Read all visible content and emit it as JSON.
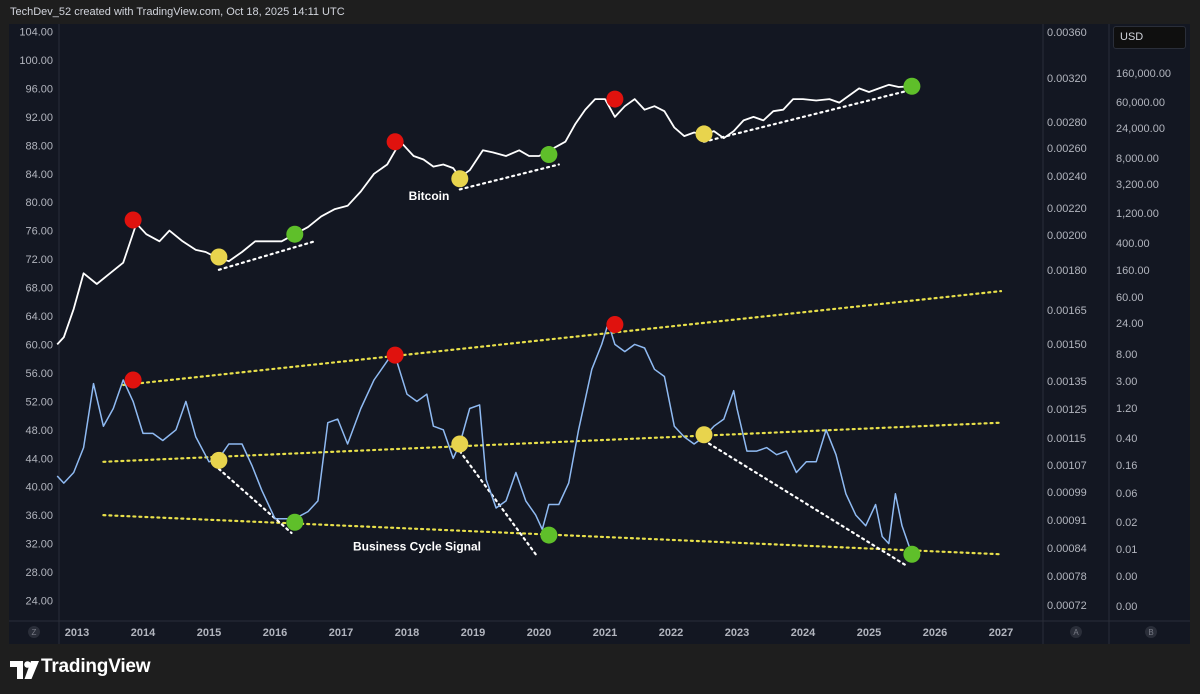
{
  "header": {
    "caption": "TechDev_52 created with TradingView.com, Oct 18, 2025 14:11 UTC"
  },
  "footer": {
    "brand": "TradingView"
  },
  "currency_button": "USD",
  "axis_corner_labels": {
    "left": "Z",
    "mid": "A",
    "right": "B"
  },
  "colors": {
    "background": "#131722",
    "red": "#e0120e",
    "yellow": "#e8d44d",
    "green": "#5fbf2a",
    "signal_line": "#8fbaf2",
    "price_line": "#ffffff",
    "trend": "#e8e04a"
  },
  "chart_data": {
    "type": "line",
    "x_ticks": [
      "2013",
      "2014",
      "2015",
      "2016",
      "2017",
      "2018",
      "2019",
      "2020",
      "2021",
      "2022",
      "2023",
      "2024",
      "2025",
      "2026",
      "2027"
    ],
    "left_axis": {
      "ylim": [
        22,
        106
      ],
      "ticks": [
        "104.00",
        "100.00",
        "96.00",
        "92.00",
        "88.00",
        "84.00",
        "80.00",
        "76.00",
        "72.00",
        "68.00",
        "64.00",
        "60.00",
        "56.00",
        "52.00",
        "48.00",
        "44.00",
        "40.00",
        "36.00",
        "32.00",
        "28.00",
        "24.00"
      ]
    },
    "mid_axis": {
      "ticks": [
        "0.00360",
        "0.00320",
        "0.00280",
        "0.00260",
        "0.00240",
        "0.00220",
        "0.00200",
        "0.00180",
        "0.00165",
        "0.00150",
        "0.00135",
        "0.00125",
        "0.00115",
        "0.00107",
        "0.00099",
        "0.00091",
        "0.00084",
        "0.00078",
        "0.00072"
      ]
    },
    "right_axis": {
      "scale": "log",
      "ticks": [
        "160,000.00",
        "60,000.00",
        "24,000.00",
        "8,000.00",
        "3,200.00",
        "1,200.00",
        "400.00",
        "160.00",
        "60.00",
        "24.00",
        "8.00",
        "3.00",
        "1.20",
        "0.40",
        "0.16",
        "0.06",
        "0.02",
        "0.01",
        "0.00",
        "0.00"
      ]
    },
    "annotations": [
      "Bitcoin",
      "Business Cycle Signal"
    ],
    "series": [
      {
        "name": "Bitcoin",
        "x": [
          2012.7,
          2012.8,
          2012.95,
          2013.1,
          2013.3,
          2013.5,
          2013.7,
          2013.9,
          2014.05,
          2014.25,
          2014.4,
          2014.6,
          2014.8,
          2014.95,
          2015.1,
          2015.3,
          2015.5,
          2015.7,
          2015.9,
          2016.1,
          2016.3,
          2016.5,
          2016.7,
          2016.9,
          2017.1,
          2017.3,
          2017.5,
          2017.7,
          2017.9,
          2018.1,
          2018.25,
          2018.4,
          2018.55,
          2018.7,
          2018.8,
          2018.95,
          2019.15,
          2019.3,
          2019.5,
          2019.7,
          2019.85,
          2020.0,
          2020.2,
          2020.4,
          2020.55,
          2020.7,
          2020.85,
          2021.0,
          2021.15,
          2021.3,
          2021.45,
          2021.6,
          2021.75,
          2021.9,
          2022.05,
          2022.2,
          2022.35,
          2022.5,
          2022.65,
          2022.8,
          2022.95,
          2023.1,
          2023.25,
          2023.4,
          2023.55,
          2023.7,
          2023.85,
          2024.0,
          2024.2,
          2024.4,
          2024.55,
          2024.7,
          2024.85,
          2025.0,
          2025.15,
          2025.3,
          2025.45,
          2025.65
        ],
        "values": [
          60,
          61,
          65,
          70,
          68.5,
          70,
          71.5,
          77,
          75.5,
          74.5,
          76,
          74.5,
          73.3,
          73,
          72.3,
          71.7,
          73,
          74.5,
          74.5,
          74.5,
          75.5,
          76.5,
          78,
          79,
          79.5,
          81.5,
          84,
          85.3,
          88.5,
          86.5,
          86,
          85,
          85.3,
          84.8,
          83.5,
          84.5,
          87.3,
          87,
          86.5,
          87.3,
          86.5,
          86.5,
          87.5,
          88.5,
          91,
          93,
          94.5,
          94.5,
          92,
          93.5,
          94.5,
          93,
          93.5,
          92.8,
          90.5,
          89.3,
          89.8,
          89.5,
          90,
          89,
          90,
          91.5,
          92,
          91.5,
          92.8,
          93,
          94.5,
          94.5,
          94.3,
          94.5,
          94,
          95,
          96,
          95.5,
          96,
          96.5,
          96.2,
          96.3
        ],
        "markers": [
          {
            "x": 2013.85,
            "y": 77.5,
            "color": "red"
          },
          {
            "x": 2015.15,
            "y": 72.3,
            "color": "yellow"
          },
          {
            "x": 2016.3,
            "y": 75.5,
            "color": "green"
          },
          {
            "x": 2017.82,
            "y": 88.5,
            "color": "red"
          },
          {
            "x": 2018.8,
            "y": 83.3,
            "color": "yellow"
          },
          {
            "x": 2020.15,
            "y": 86.7,
            "color": "green"
          },
          {
            "x": 2021.15,
            "y": 94.5,
            "color": "red"
          },
          {
            "x": 2022.5,
            "y": 89.6,
            "color": "yellow"
          },
          {
            "x": 2025.65,
            "y": 96.3,
            "color": "green"
          }
        ]
      },
      {
        "name": "Business Cycle Signal",
        "x": [
          2012.7,
          2012.8,
          2012.95,
          2013.1,
          2013.25,
          2013.4,
          2013.55,
          2013.7,
          2013.85,
          2014.0,
          2014.15,
          2014.3,
          2014.5,
          2014.65,
          2014.8,
          2015.0,
          2015.15,
          2015.3,
          2015.5,
          2015.65,
          2015.8,
          2016.0,
          2016.15,
          2016.3,
          2016.5,
          2016.65,
          2016.8,
          2016.95,
          2017.1,
          2017.3,
          2017.5,
          2017.65,
          2017.8,
          2018.0,
          2018.15,
          2018.3,
          2018.4,
          2018.55,
          2018.7,
          2018.8,
          2018.95,
          2019.1,
          2019.2,
          2019.35,
          2019.5,
          2019.65,
          2019.8,
          2019.95,
          2020.05,
          2020.15,
          2020.3,
          2020.45,
          2020.6,
          2020.8,
          2020.95,
          2021.05,
          2021.15,
          2021.3,
          2021.45,
          2021.6,
          2021.75,
          2021.9,
          2022.05,
          2022.2,
          2022.35,
          2022.5,
          2022.65,
          2022.8,
          2022.95,
          2023.0,
          2023.15,
          2023.3,
          2023.45,
          2023.6,
          2023.75,
          2023.9,
          2024.05,
          2024.2,
          2024.35,
          2024.5,
          2024.65,
          2024.8,
          2024.95,
          2025.1,
          2025.2,
          2025.3,
          2025.4,
          2025.5,
          2025.65
        ],
        "values": [
          41.5,
          40.5,
          42,
          45.5,
          54.5,
          48.5,
          51,
          55,
          52,
          47.5,
          47.5,
          46.5,
          48,
          52,
          47,
          43.5,
          44,
          46,
          46,
          43,
          39.5,
          35.5,
          35.5,
          35.5,
          36.5,
          38,
          49,
          49.5,
          46,
          51,
          55,
          57,
          59,
          53,
          52,
          53,
          48.5,
          48,
          44,
          46,
          51,
          51.5,
          41,
          37,
          38,
          42,
          38,
          36,
          34,
          37.5,
          37.5,
          40.5,
          48,
          56.5,
          60,
          63,
          60,
          59,
          60,
          59.5,
          56.5,
          55.5,
          48.5,
          47,
          46,
          47,
          48.5,
          49.5,
          53.5,
          51,
          45,
          45,
          45.5,
          44.5,
          45,
          42,
          43.5,
          43.5,
          48,
          44.5,
          39,
          36,
          34.5,
          37.5,
          33,
          32,
          39,
          34.5,
          30.5
        ],
        "markers": [
          {
            "x": 2013.85,
            "y": 55,
            "color": "red"
          },
          {
            "x": 2015.15,
            "y": 43.7,
            "color": "yellow"
          },
          {
            "x": 2016.3,
            "y": 35,
            "color": "green"
          },
          {
            "x": 2017.82,
            "y": 58.5,
            "color": "red"
          },
          {
            "x": 2018.8,
            "y": 46,
            "color": "yellow"
          },
          {
            "x": 2020.15,
            "y": 33.2,
            "color": "green"
          },
          {
            "x": 2021.15,
            "y": 62.8,
            "color": "red"
          },
          {
            "x": 2022.5,
            "y": 47.3,
            "color": "yellow"
          },
          {
            "x": 2025.65,
            "y": 30.5,
            "color": "green"
          }
        ]
      }
    ],
    "trendlines": [
      {
        "color": "yellow",
        "from": [
          2013.7,
          54.3
        ],
        "to": [
          2027.0,
          67.5
        ]
      },
      {
        "color": "yellow",
        "from": [
          2013.4,
          43.5
        ],
        "to": [
          2027.0,
          49.0
        ]
      },
      {
        "color": "yellow",
        "from": [
          2013.4,
          36.0
        ],
        "to": [
          2027.0,
          30.5
        ]
      },
      {
        "color": "white",
        "from": [
          2015.15,
          70.5
        ],
        "to": [
          2016.6,
          74.5
        ]
      },
      {
        "color": "white",
        "from": [
          2018.8,
          81.8
        ],
        "to": [
          2020.3,
          85.3
        ]
      },
      {
        "color": "white",
        "from": [
          2022.5,
          88.5
        ],
        "to": [
          2025.6,
          95.7
        ]
      },
      {
        "color": "white",
        "from": [
          2015.15,
          42.5
        ],
        "to": [
          2016.25,
          33.5
        ]
      },
      {
        "color": "white",
        "from": [
          2018.8,
          45.0
        ],
        "to": [
          2019.95,
          30.5
        ]
      },
      {
        "color": "white",
        "from": [
          2022.5,
          46.5
        ],
        "to": [
          2025.55,
          29.0
        ]
      }
    ]
  }
}
